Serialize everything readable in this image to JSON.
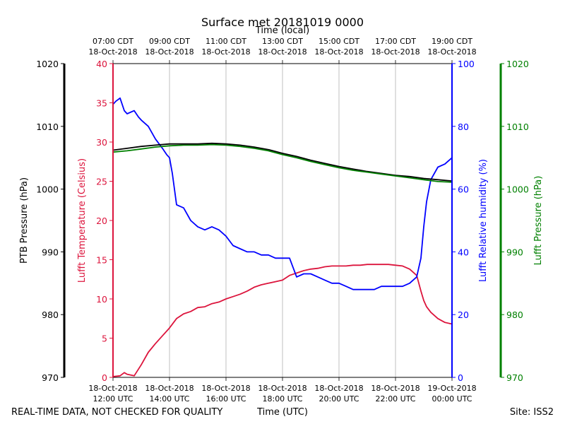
{
  "chart_data": {
    "type": "line",
    "title": "Surface met 20181019 0000",
    "top_axis_label": "Time (local)",
    "xlabel": "Time (UTC)",
    "footer_left": "REAL-TIME DATA, NOT CHECKED FOR QUALITY",
    "footer_right": "Site: ISS2",
    "x_range_hours_utc": [
      12,
      24
    ],
    "x_ticks": [
      {
        "hour": 12,
        "bottom_date": "18-Oct-2018",
        "bottom_time": "12:00 UTC",
        "top_time": "07:00 CDT",
        "top_date": "18-Oct-2018"
      },
      {
        "hour": 14,
        "bottom_date": "18-Oct-2018",
        "bottom_time": "14:00 UTC",
        "top_time": "09:00 CDT",
        "top_date": "18-Oct-2018"
      },
      {
        "hour": 16,
        "bottom_date": "18-Oct-2018",
        "bottom_time": "16:00 UTC",
        "top_time": "11:00 CDT",
        "top_date": "18-Oct-2018"
      },
      {
        "hour": 18,
        "bottom_date": "18-Oct-2018",
        "bottom_time": "18:00 UTC",
        "top_time": "13:00 CDT",
        "top_date": "18-Oct-2018"
      },
      {
        "hour": 20,
        "bottom_date": "18-Oct-2018",
        "bottom_time": "20:00 UTC",
        "top_time": "15:00 CDT",
        "top_date": "18-Oct-2018"
      },
      {
        "hour": 22,
        "bottom_date": "18-Oct-2018",
        "bottom_time": "22:00 UTC",
        "top_time": "17:00 CDT",
        "top_date": "18-Oct-2018"
      },
      {
        "hour": 24,
        "bottom_date": "19-Oct-2018",
        "bottom_time": "00:00 UTC",
        "top_time": "19:00 CDT",
        "top_date": "18-Oct-2018"
      }
    ],
    "axes": [
      {
        "name": "PTB Pressure (hPa)",
        "key": "ptb",
        "color": "#000000",
        "ylim": [
          970,
          1020
        ],
        "ticks": [
          970,
          980,
          990,
          1000,
          1010,
          1020
        ],
        "tick_labels": [
          "970",
          "980",
          "990",
          "1000",
          "1010",
          "1020"
        ]
      },
      {
        "name": "Lufft Temperature (Celsius)",
        "key": "temp",
        "color": "#dc143c",
        "ylim": [
          0,
          40
        ],
        "ticks": [
          0,
          5,
          10,
          15,
          20,
          25,
          30,
          35,
          40
        ],
        "tick_labels": [
          "0",
          "5",
          "10",
          "15",
          "20",
          "25",
          "30",
          "35",
          "40"
        ]
      },
      {
        "name": "Lufft Relative humidity (%)",
        "key": "rh",
        "color": "#0000ff",
        "ylim": [
          0,
          100
        ],
        "ticks": [
          0,
          20,
          40,
          60,
          80,
          100
        ],
        "tick_labels": [
          "0",
          "20",
          "40",
          "60",
          "80",
          "100"
        ]
      },
      {
        "name": "Lufft Pressure (hPa)",
        "key": "lufft_p",
        "color": "#008000",
        "ylim": [
          970,
          1020
        ],
        "ticks": [
          970,
          980,
          990,
          1000,
          1010,
          1020
        ],
        "tick_labels": [
          "970",
          "980",
          "990",
          "1000",
          "1010",
          "1020"
        ]
      }
    ],
    "series": [
      {
        "name": "Lufft Temperature",
        "axis": "temp",
        "color": "#dc143c",
        "x": [
          12.0,
          12.25,
          12.4,
          12.5,
          12.75,
          13.0,
          13.25,
          13.5,
          13.75,
          14.0,
          14.25,
          14.5,
          14.75,
          15.0,
          15.25,
          15.5,
          15.75,
          16.0,
          16.25,
          16.5,
          16.75,
          17.0,
          17.25,
          17.5,
          17.75,
          18.0,
          18.25,
          18.5,
          18.75,
          19.0,
          19.25,
          19.5,
          19.75,
          20.0,
          20.25,
          20.5,
          20.75,
          21.0,
          21.25,
          21.5,
          21.75,
          22.0,
          22.25,
          22.5,
          22.75,
          22.9,
          23.0,
          23.1,
          23.25,
          23.5,
          23.75,
          24.0
        ],
        "values": [
          0.1,
          0.2,
          0.6,
          0.4,
          0.2,
          1.6,
          3.2,
          4.3,
          5.3,
          6.3,
          7.5,
          8.1,
          8.4,
          8.9,
          9.0,
          9.4,
          9.6,
          10.0,
          10.3,
          10.6,
          11.0,
          11.5,
          11.8,
          12.0,
          12.2,
          12.4,
          13.0,
          13.3,
          13.6,
          13.8,
          13.9,
          14.1,
          14.2,
          14.2,
          14.2,
          14.3,
          14.3,
          14.4,
          14.4,
          14.4,
          14.4,
          14.3,
          14.2,
          13.8,
          13.0,
          11.0,
          9.8,
          9.0,
          8.3,
          7.5,
          7.0,
          6.8
        ]
      },
      {
        "name": "Lufft Relative humidity",
        "axis": "rh",
        "color": "#0000ff",
        "x": [
          12.0,
          12.1,
          12.25,
          12.4,
          12.5,
          12.75,
          12.9,
          13.0,
          13.25,
          13.5,
          13.75,
          13.9,
          14.0,
          14.1,
          14.25,
          14.5,
          14.75,
          15.0,
          15.25,
          15.5,
          15.75,
          16.0,
          16.25,
          16.5,
          16.75,
          17.0,
          17.25,
          17.5,
          17.75,
          18.0,
          18.25,
          18.5,
          18.75,
          19.0,
          19.25,
          19.5,
          19.75,
          20.0,
          20.25,
          20.5,
          20.75,
          21.0,
          21.25,
          21.5,
          21.75,
          22.0,
          22.25,
          22.5,
          22.75,
          22.9,
          23.0,
          23.1,
          23.25,
          23.5,
          23.75,
          24.0
        ],
        "values": [
          87,
          88,
          89,
          85,
          84,
          85,
          83,
          82,
          80,
          76,
          73,
          71,
          70,
          65,
          55,
          54,
          50,
          48,
          47,
          48,
          47,
          45,
          42,
          41,
          40,
          40,
          39,
          39,
          38,
          38,
          38,
          32,
          33,
          33,
          32,
          31,
          30,
          30,
          29,
          28,
          28,
          28,
          28,
          29,
          29,
          29,
          29,
          30,
          32,
          38,
          48,
          56,
          63,
          67,
          68,
          70
        ]
      },
      {
        "name": "PTB Pressure",
        "axis": "ptb",
        "color": "#000000",
        "x": [
          12.0,
          12.5,
          13.0,
          13.5,
          14.0,
          14.5,
          15.0,
          15.5,
          16.0,
          16.5,
          17.0,
          17.5,
          18.0,
          18.5,
          19.0,
          19.5,
          20.0,
          20.5,
          21.0,
          21.5,
          22.0,
          22.5,
          23.0,
          23.5,
          24.0
        ],
        "values": [
          1006.2,
          1006.5,
          1006.8,
          1007.0,
          1007.2,
          1007.2,
          1007.2,
          1007.3,
          1007.2,
          1007.0,
          1006.7,
          1006.3,
          1005.7,
          1005.2,
          1004.6,
          1004.1,
          1003.6,
          1003.2,
          1002.8,
          1002.5,
          1002.2,
          1002.0,
          1001.7,
          1001.5,
          1001.3
        ]
      },
      {
        "name": "Lufft Pressure",
        "axis": "lufft_p",
        "color": "#008000",
        "x": [
          12.0,
          12.5,
          13.0,
          13.5,
          14.0,
          14.5,
          15.0,
          15.5,
          16.0,
          16.5,
          17.0,
          17.5,
          18.0,
          18.5,
          19.0,
          19.5,
          20.0,
          20.5,
          21.0,
          21.5,
          22.0,
          22.5,
          23.0,
          23.5,
          24.0
        ],
        "values": [
          1005.9,
          1006.1,
          1006.4,
          1006.7,
          1006.9,
          1007.0,
          1007.0,
          1007.1,
          1007.0,
          1006.8,
          1006.5,
          1006.1,
          1005.5,
          1005.0,
          1004.4,
          1003.9,
          1003.4,
          1003.0,
          1002.7,
          1002.4,
          1002.1,
          1001.8,
          1001.5,
          1001.2,
          1001.1
        ]
      }
    ]
  }
}
